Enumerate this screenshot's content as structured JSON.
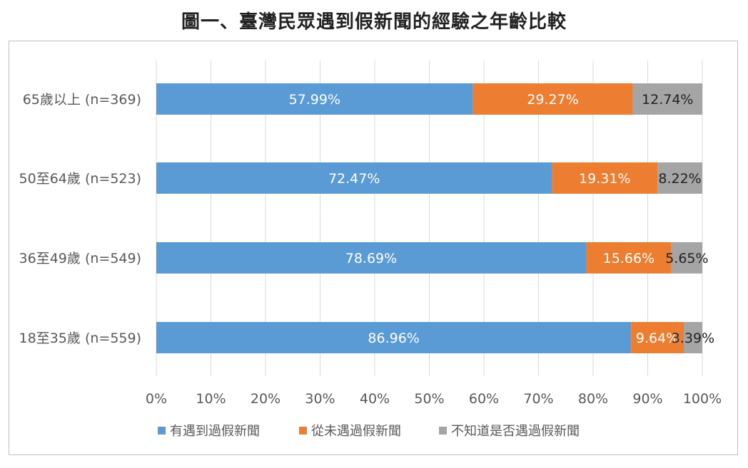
{
  "title": "圖一、臺灣民眾遇到假新聞的經驗之年齡比較",
  "chart_data": {
    "type": "bar",
    "orientation": "horizontal",
    "stacked": "percent",
    "title": "圖一、臺灣民眾遇到假新聞的經驗之年齡比較",
    "categories": [
      "65歲以上 (n=369)",
      "50至64歲 (n=523)",
      "36至49歲 (n=549)",
      "18至35歲 (n=559)"
    ],
    "series": [
      {
        "name": "有遇到過假新聞",
        "color": "#5B9BD5",
        "label_color": "#ffffff",
        "values": [
          57.99,
          72.47,
          78.69,
          86.96
        ],
        "labels": [
          "57.99%",
          "72.47%",
          "78.69%",
          "86.96%"
        ]
      },
      {
        "name": "從未遇過假新聞",
        "color": "#ED7D31",
        "label_color": "#ffffff",
        "values": [
          29.27,
          19.31,
          15.66,
          9.64
        ],
        "labels": [
          "29.27%",
          "19.31%",
          "15.66%",
          "9.64%"
        ]
      },
      {
        "name": "不知道是否遇過假新聞",
        "color": "#A5A5A5",
        "label_color": "#222222",
        "values": [
          12.74,
          8.22,
          5.65,
          3.39
        ],
        "labels": [
          "12.74%",
          "8.22%",
          "5.65%",
          "3.39%"
        ]
      }
    ],
    "xlim": [
      0,
      100
    ],
    "xticks": [
      "0%",
      "10%",
      "20%",
      "30%",
      "40%",
      "50%",
      "60%",
      "70%",
      "80%",
      "90%",
      "100%"
    ],
    "grid": true,
    "legend_position": "bottom"
  }
}
